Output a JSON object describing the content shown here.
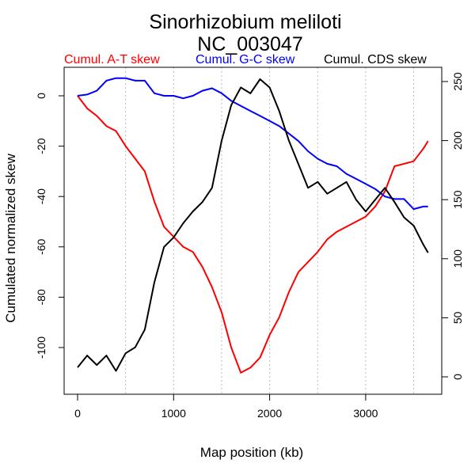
{
  "chart_data": {
    "type": "line",
    "title": "Sinorhizobium meliloti",
    "subtitle": "NC_003047",
    "xlabel": "Map position (kb)",
    "ylabel": "Cumulated normalized skew",
    "xlim": [
      -150,
      3800
    ],
    "ylim": [
      -117,
      12
    ],
    "ylim_right": [
      -8,
      262
    ],
    "x_ticks": [
      "0",
      "1000",
      "2000",
      "3000"
    ],
    "x_tick_values": [
      0,
      1000,
      2000,
      3000
    ],
    "y_ticks": [
      "0",
      "-20",
      "-40",
      "-60",
      "-80",
      "-100"
    ],
    "y_tick_values": [
      0,
      -20,
      -40,
      -60,
      -80,
      -100
    ],
    "y_right_ticks": [
      "0",
      "50",
      "100",
      "150",
      "200",
      "250"
    ],
    "y_right_tick_values": [
      0,
      50,
      100,
      150,
      200,
      250
    ],
    "grid_x": [
      500,
      1000,
      1500,
      2000,
      2500,
      3000,
      3500
    ],
    "x": [
      0,
      100,
      200,
      300,
      400,
      500,
      600,
      700,
      800,
      900,
      1000,
      1100,
      1200,
      1300,
      1400,
      1500,
      1600,
      1700,
      1800,
      1900,
      2000,
      2100,
      2200,
      2300,
      2400,
      2500,
      2600,
      2700,
      2800,
      2900,
      3000,
      3100,
      3200,
      3300,
      3400,
      3500,
      3600,
      3650
    ],
    "series": [
      {
        "name": "Cumul. A-T skew",
        "color": "#ff0000",
        "axis": "left",
        "values": [
          0,
          -5,
          -8,
          -12,
          -14,
          -20,
          -25,
          -30,
          -42,
          -52,
          -56,
          -60,
          -62,
          -68,
          -76,
          -86,
          -100,
          -110,
          -108,
          -104,
          -95,
          -88,
          -78,
          -70,
          -66,
          -62,
          -57,
          -54,
          -52,
          -50,
          -48,
          -44,
          -38,
          -28,
          -27,
          -26,
          -21,
          -18
        ]
      },
      {
        "name": "Cumul. G-C skew",
        "color": "#0000ff",
        "axis": "left",
        "values": [
          0,
          0.5,
          2,
          6,
          7,
          7,
          6,
          6,
          1,
          0,
          0,
          -1,
          0,
          2,
          3,
          1,
          -2,
          -4,
          -6,
          -8,
          -10,
          -12,
          -15,
          -18,
          -22,
          -25,
          -27,
          -28,
          -31,
          -33,
          -35,
          -37,
          -40,
          -41,
          -41,
          -45,
          -44,
          -44
        ]
      },
      {
        "name": "Cumul. CDS skew",
        "color": "#000000",
        "axis": "right",
        "values": [
          8,
          18,
          10,
          18,
          5,
          20,
          25,
          40,
          80,
          110,
          118,
          130,
          140,
          148,
          160,
          200,
          230,
          245,
          240,
          252,
          245,
          225,
          200,
          180,
          160,
          165,
          155,
          160,
          165,
          150,
          140,
          150,
          160,
          148,
          135,
          128,
          112,
          105
        ]
      }
    ]
  }
}
